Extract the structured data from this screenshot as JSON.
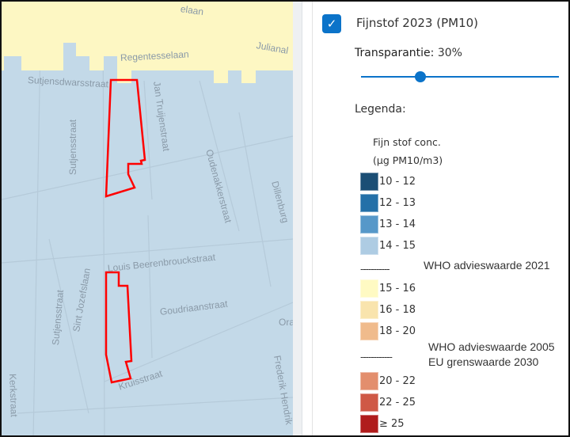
{
  "map": {
    "streets": [
      {
        "name": "Regentesselaan"
      },
      {
        "name": "Sutjensdwarsstraat"
      },
      {
        "name": "Jan Truijenstraat"
      },
      {
        "name": "Sutjensstraat"
      },
      {
        "name": "Oudenakkerstraat"
      },
      {
        "name": "Dillenburg"
      },
      {
        "name": "Louis Beerenbrouckstraat"
      },
      {
        "name": "Goudriaanstraat"
      },
      {
        "name": "Sutjensstraat"
      },
      {
        "name": "Sint Jozefslaan"
      },
      {
        "name": "Kruisstraat"
      },
      {
        "name": "Kerkstraat"
      },
      {
        "name": "Frederik Hendrik"
      },
      {
        "name": "Julianal"
      },
      {
        "name": "elaan"
      },
      {
        "name": "Ora"
      }
    ],
    "colors": {
      "pm_15_16": "#fdf7bd",
      "pm_14_15": "#c3d9e8",
      "plan_outline": "#ff0000"
    }
  },
  "panel": {
    "layer_checked": true,
    "layer_label": "Fijnstof 2023 (PM10)",
    "transparency_label": "Transparantie:",
    "transparency_value": "30%",
    "transparency_percent": 30,
    "legend_title": "Legenda:",
    "legend_subtitle_1": "Fijn stof conc.",
    "legend_subtitle_2": "(µg PM10/m3)",
    "classes": [
      {
        "label": "10 - 12",
        "color": "#1b4e75"
      },
      {
        "label": "12 - 13",
        "color": "#2470a8"
      },
      {
        "label": "13 - 14",
        "color": "#5698c9"
      },
      {
        "label": "14 - 15",
        "color": "#aecce3"
      },
      {
        "label": "15 - 16",
        "color": "#fffac3"
      },
      {
        "label": "16 - 18",
        "color": "#f9e4ad"
      },
      {
        "label": "18 - 20",
        "color": "#f0bb8c"
      },
      {
        "label": "20 - 22",
        "color": "#e38e6d"
      },
      {
        "label": "22 - 25",
        "color": "#cf5846"
      },
      {
        "label": "≥ 25",
        "color": "#b01c1c"
      }
    ],
    "separator_1": {
      "dash": "-----------",
      "text": "WHO advieswaarde 2021"
    },
    "separator_2": {
      "dash": "------------",
      "text_1": "WHO advieswaarde 2005",
      "text_2": "EU grenswaarde 2030"
    }
  }
}
